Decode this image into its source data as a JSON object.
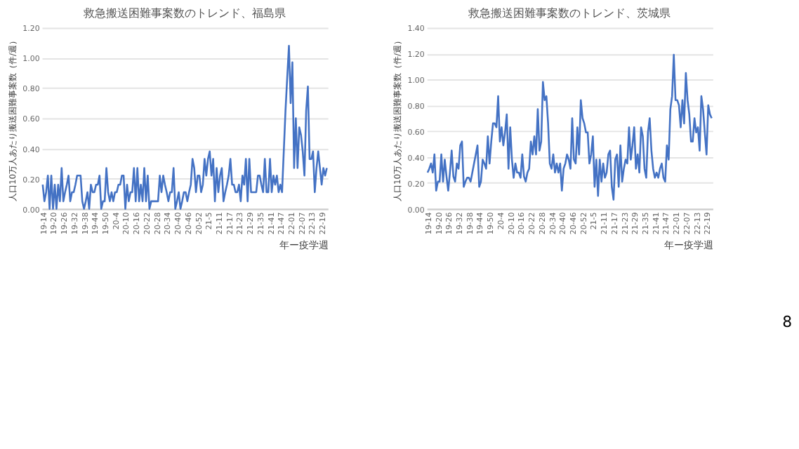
{
  "chart_data": [
    {
      "type": "line",
      "title": "救急搬送困難事案数のトレンド、福島県",
      "xlabel": "年ー疫学週",
      "ylabel": "人口10万人あたり搬送困難事案数（件/週）",
      "grid": "y",
      "line_style": "solid",
      "categories": [
        "19-14",
        null,
        null,
        null,
        null,
        null,
        "19-20",
        null,
        null,
        null,
        null,
        null,
        "19-26",
        null,
        null,
        null,
        null,
        null,
        "19-32",
        null,
        null,
        null,
        null,
        null,
        "19-38",
        null,
        null,
        null,
        null,
        null,
        "19-44",
        null,
        null,
        null,
        null,
        null,
        "19-50",
        null,
        null,
        null,
        null,
        null,
        "20-4",
        null,
        null,
        null,
        null,
        null,
        "20-10",
        null,
        null,
        null,
        null,
        null,
        "20-16",
        null,
        null,
        null,
        null,
        null,
        "20-22",
        null,
        null,
        null,
        null,
        null,
        "20-28",
        null,
        null,
        null,
        null,
        null,
        "20-34",
        null,
        null,
        null,
        null,
        null,
        "20-40",
        null,
        null,
        null,
        null,
        null,
        "20-46",
        null,
        null,
        null,
        null,
        null,
        "20-52",
        null,
        null,
        null,
        null,
        null,
        "21-5",
        null,
        null,
        null,
        null,
        null,
        "21-11",
        null,
        null,
        null,
        null,
        null,
        "21-17",
        null,
        null,
        null,
        null,
        null,
        "21-23",
        null,
        null,
        null,
        null,
        null,
        "21-29",
        null,
        null,
        null,
        null,
        null,
        "21-35",
        null,
        null,
        null,
        null,
        null,
        "21-41",
        null,
        null,
        null,
        null,
        null,
        "21-47",
        null,
        null,
        null,
        null,
        null,
        "22-01",
        null,
        null,
        null,
        null,
        null,
        "22-07",
        null,
        null,
        null,
        null,
        null,
        "22-13",
        null,
        null,
        null,
        null,
        null,
        "22-19",
        null,
        null,
        null
      ],
      "series": [
        {
          "color": "#4472c4",
          "values": [
            0.16,
            0.05,
            0.11,
            0.22,
            0,
            0.22,
            0,
            0.16,
            0,
            0.16,
            0.05,
            0.27,
            0.05,
            0.11,
            0.16,
            0.22,
            0.05,
            0.11,
            0.11,
            0.16,
            0.22,
            0.22,
            0.22,
            0.05,
            0,
            0.05,
            0.11,
            0,
            0.16,
            0.11,
            0.11,
            0.16,
            0.16,
            0.22,
            0,
            0.05,
            0.05,
            0.27,
            0.11,
            0.05,
            0.11,
            0.05,
            0.11,
            0.11,
            0.16,
            0.16,
            0.22,
            0.22,
            0,
            0.16,
            0.05,
            0.11,
            0.11,
            0.27,
            0.05,
            0.27,
            0.05,
            0.16,
            0.05,
            0.27,
            0.05,
            0.22,
            0,
            0.05,
            0.05,
            0.05,
            0.05,
            0.05,
            0.22,
            0.11,
            0.22,
            0.16,
            0.11,
            0.05,
            0.11,
            0.11,
            0.27,
            0,
            0.05,
            0.11,
            0,
            0.05,
            0.11,
            0.11,
            0.05,
            0.11,
            0.16,
            0.33,
            0.27,
            0.11,
            0.22,
            0.22,
            0.11,
            0.16,
            0.33,
            0.22,
            0.33,
            0.38,
            0.22,
            0.33,
            0.05,
            0.27,
            0.11,
            0.22,
            0.27,
            0.05,
            0.11,
            0.16,
            0.22,
            0.33,
            0.16,
            0.16,
            0.11,
            0.11,
            0.16,
            0.05,
            0.22,
            0.16,
            0.33,
            0.05,
            0.33,
            0.11,
            0.11,
            0.11,
            0.11,
            0.22,
            0.22,
            0.16,
            0.11,
            0.33,
            0.11,
            0.11,
            0.33,
            0.11,
            0.22,
            0.16,
            0.22,
            0.11,
            0.16,
            0.11,
            0.38,
            0.65,
            0.87,
            1.08,
            0.7,
            0.97,
            0.27,
            0.6,
            0.27,
            0.54,
            0.49,
            0.38,
            0.22,
            0.65,
            0.81,
            0.33,
            0.33,
            0.38,
            0.11,
            0.27,
            0.38,
            0.27,
            0.16,
            0.27,
            0.22,
            0.27
          ]
        }
      ],
      "ylim": [
        0,
        1.2
      ],
      "yticks": [
        {
          "value": 0,
          "label": "0.00"
        },
        {
          "value": 0.2,
          "label": "0.20"
        },
        {
          "value": 0.4,
          "label": "0.40"
        },
        {
          "value": 0.6,
          "label": "0.60"
        },
        {
          "value": 0.8,
          "label": "0.80"
        },
        {
          "value": 1.0,
          "label": "1.00"
        },
        {
          "value": 1.2,
          "label": "1.20"
        }
      ]
    },
    {
      "type": "line",
      "title": "救急搬送困難事案数のトレンド、茨城県",
      "xlabel": "年ー疫学週",
      "ylabel": "人口10万人あたり搬送困難事案数（件/週）",
      "grid": "y",
      "line_style": "solid",
      "annotations": [
        "8"
      ],
      "categories": [
        "19-14",
        null,
        null,
        null,
        null,
        null,
        "19-20",
        null,
        null,
        null,
        null,
        null,
        "19-26",
        null,
        null,
        null,
        null,
        null,
        "19-32",
        null,
        null,
        null,
        null,
        null,
        "19-38",
        null,
        null,
        null,
        null,
        null,
        "19-44",
        null,
        null,
        null,
        null,
        null,
        "19-50",
        null,
        null,
        null,
        null,
        null,
        "20-4",
        null,
        null,
        null,
        null,
        null,
        "20-10",
        null,
        null,
        null,
        null,
        null,
        "20-16",
        null,
        null,
        null,
        null,
        null,
        "20-22",
        null,
        null,
        null,
        null,
        null,
        "20-28",
        null,
        null,
        null,
        null,
        null,
        "20-34",
        null,
        null,
        null,
        null,
        null,
        "20-40",
        null,
        null,
        null,
        null,
        null,
        "20-46",
        null,
        null,
        null,
        null,
        null,
        "20-52",
        null,
        null,
        null,
        null,
        null,
        "21-5",
        null,
        null,
        null,
        null,
        null,
        "21-11",
        null,
        null,
        null,
        null,
        null,
        "21-17",
        null,
        null,
        null,
        null,
        null,
        "21-23",
        null,
        null,
        null,
        null,
        null,
        "21-29",
        null,
        null,
        null,
        null,
        null,
        "21-35",
        null,
        null,
        null,
        null,
        null,
        "21-41",
        null,
        null,
        null,
        null,
        null,
        "21-47",
        null,
        null,
        null,
        null,
        null,
        "22-01",
        null,
        null,
        null,
        null,
        null,
        "22-07",
        null,
        null,
        null,
        null,
        null,
        "22-13",
        null,
        null,
        null,
        null,
        null,
        "22-19",
        null,
        null,
        null
      ],
      "series": [
        {
          "color": "#4472c4",
          "values": [
            0.28,
            0.31,
            0.35,
            0.28,
            0.42,
            0.14,
            0.21,
            0.21,
            0.42,
            0.21,
            0.38,
            0.25,
            0.14,
            0.28,
            0.45,
            0.25,
            0.21,
            0.35,
            0.31,
            0.49,
            0.52,
            0.17,
            0.21,
            0.24,
            0.24,
            0.21,
            0.28,
            0.35,
            0.42,
            0.49,
            0.17,
            0.21,
            0.38,
            0.35,
            0.31,
            0.56,
            0.35,
            0.52,
            0.66,
            0.66,
            0.63,
            0.87,
            0.52,
            0.63,
            0.49,
            0.59,
            0.73,
            0.31,
            0.63,
            0.38,
            0.24,
            0.35,
            0.28,
            0.28,
            0.24,
            0.42,
            0.25,
            0.21,
            0.28,
            0.31,
            0.52,
            0.42,
            0.56,
            0.42,
            0.77,
            0.45,
            0.52,
            0.98,
            0.84,
            0.87,
            0.66,
            0.35,
            0.31,
            0.42,
            0.28,
            0.35,
            0.28,
            0.35,
            0.14,
            0.31,
            0.35,
            0.42,
            0.38,
            0.31,
            0.7,
            0.38,
            0.35,
            0.63,
            0.42,
            0.84,
            0.7,
            0.66,
            0.59,
            0.59,
            0.35,
            0.42,
            0.56,
            0.17,
            0.38,
            0.1,
            0.38,
            0.21,
            0.35,
            0.24,
            0.28,
            0.42,
            0.45,
            0.17,
            0.07,
            0.38,
            0.42,
            0.17,
            0.49,
            0.21,
            0.31,
            0.38,
            0.35,
            0.63,
            0.38,
            0.49,
            0.63,
            0.31,
            0.42,
            0.28,
            0.63,
            0.56,
            0.31,
            0.24,
            0.59,
            0.7,
            0.45,
            0.31,
            0.24,
            0.28,
            0.24,
            0.31,
            0.35,
            0.24,
            0.21,
            0.49,
            0.38,
            0.77,
            0.87,
            1.19,
            0.84,
            0.84,
            0.8,
            0.63,
            0.84,
            0.66,
            1.05,
            0.84,
            0.73,
            0.52,
            0.52,
            0.7,
            0.59,
            0.63,
            0.45,
            0.87,
            0.77,
            0.59,
            0.42,
            0.8,
            0.73,
            0.7
          ]
        }
      ],
      "ylim": [
        0,
        1.4
      ],
      "yticks": [
        {
          "value": 0,
          "label": "0.00"
        },
        {
          "value": 0.2,
          "label": "0.20"
        },
        {
          "value": 0.4,
          "label": "0.40"
        },
        {
          "value": 0.6,
          "label": "0.60"
        },
        {
          "value": 0.8,
          "label": "0.80"
        },
        {
          "value": 1.0,
          "label": "1.00"
        },
        {
          "value": 1.2,
          "label": "1.20"
        },
        {
          "value": 1.4,
          "label": "1.40"
        }
      ]
    }
  ]
}
